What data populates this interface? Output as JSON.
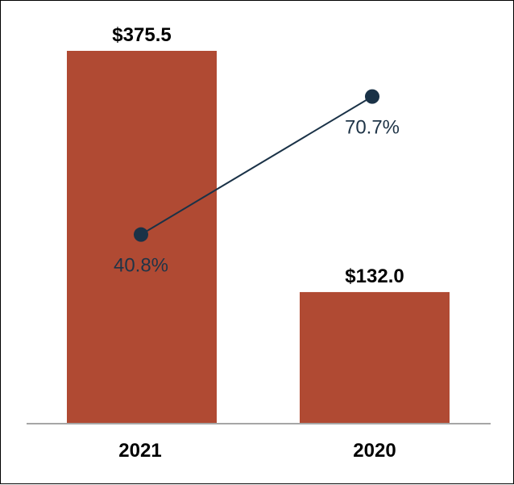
{
  "chart_data": {
    "type": "bar",
    "categories": [
      "2021",
      "2020"
    ],
    "series": [
      {
        "type": "bar",
        "values": [
          375.5,
          132.0
        ],
        "labels": [
          "$375.5",
          "$132.0"
        ],
        "color": "#b04a33"
      },
      {
        "type": "line",
        "values": [
          40.8,
          70.7
        ],
        "labels": [
          "40.8%",
          "70.7%"
        ],
        "color": "#1a3247"
      }
    ],
    "title": "",
    "xlabel": "",
    "ylabel": "",
    "ylim": [
      0,
      375.5
    ],
    "line_ylim": [
      0,
      80.6
    ],
    "grid": false,
    "legend": "none",
    "axis_color": "#a6a6a6"
  }
}
